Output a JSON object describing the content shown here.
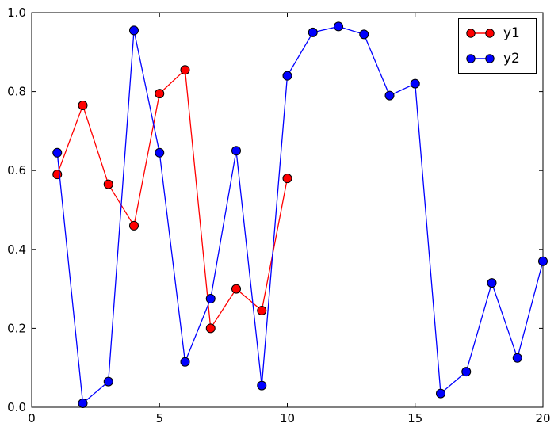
{
  "chart_data": {
    "type": "line",
    "title": "",
    "xlabel": "",
    "ylabel": "",
    "xlim": [
      0,
      20
    ],
    "ylim": [
      0.0,
      1.0
    ],
    "grid": false,
    "legend_position": "upper right",
    "x_ticks": [
      {
        "value": 0,
        "label": "0"
      },
      {
        "value": 5,
        "label": "5"
      },
      {
        "value": 10,
        "label": "10"
      },
      {
        "value": 15,
        "label": "15"
      },
      {
        "value": 20,
        "label": "20"
      }
    ],
    "y_ticks": [
      {
        "value": 0.0,
        "label": "0.0"
      },
      {
        "value": 0.2,
        "label": "0.2"
      },
      {
        "value": 0.4,
        "label": "0.4"
      },
      {
        "value": 0.6,
        "label": "0.6"
      },
      {
        "value": 0.8,
        "label": "0.8"
      },
      {
        "value": 1.0,
        "label": "1.0"
      }
    ],
    "series": [
      {
        "name": "y1",
        "color": "#ff0000",
        "marker": "circle",
        "marker_edge_color": "#000000",
        "x": [
          1,
          2,
          3,
          4,
          5,
          6,
          7,
          8,
          9,
          10
        ],
        "y": [
          0.59,
          0.765,
          0.565,
          0.46,
          0.795,
          0.855,
          0.2,
          0.3,
          0.245,
          0.58
        ]
      },
      {
        "name": "y2",
        "color": "#0000ff",
        "marker": "circle",
        "marker_edge_color": "#000000",
        "x": [
          1,
          2,
          3,
          4,
          5,
          6,
          7,
          8,
          9,
          10,
          11,
          12,
          13,
          14,
          15,
          16,
          17,
          18,
          19,
          20
        ],
        "y": [
          0.645,
          0.01,
          0.065,
          0.955,
          0.645,
          0.115,
          0.275,
          0.65,
          0.055,
          0.84,
          0.95,
          0.965,
          0.945,
          0.79,
          0.82,
          0.035,
          0.09,
          0.315,
          0.125,
          0.37
        ]
      }
    ],
    "axes_color": "#000000",
    "background_color": "#ffffff"
  }
}
